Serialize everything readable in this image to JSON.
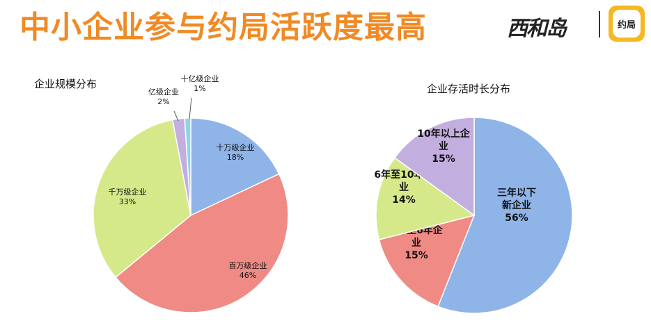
{
  "header": {
    "title": "中小企业参与约局活跃度最高",
    "brand_logo_text": "西和岛",
    "app_icon_text": "约局",
    "title_color": "#f08a24"
  },
  "chart_data": [
    {
      "type": "pie",
      "title": "企业规模分布",
      "slices": [
        {
          "label": "十万级企业",
          "value": 18,
          "value_label": "18%",
          "color": "#8eb4e8"
        },
        {
          "label": "百万级企业",
          "value": 46,
          "value_label": "46%",
          "color": "#ef8a84"
        },
        {
          "label": "千万级企业",
          "value": 33,
          "value_label": "33%",
          "color": "#d5e98a"
        },
        {
          "label": "亿级企业",
          "value": 2,
          "value_label": "2%",
          "color": "#c3aee0"
        },
        {
          "label": "十亿级企业",
          "value": 1,
          "value_label": "1%",
          "color": "#8fd3ec"
        }
      ]
    },
    {
      "type": "pie",
      "title": "企业存活时长分布",
      "slices": [
        {
          "label": "三年以下新企业",
          "value": 56,
          "value_label": "56%",
          "color": "#8eb4e8"
        },
        {
          "label": "3年至6年企业",
          "value": 15,
          "value_label": "15%",
          "color": "#ef8a84"
        },
        {
          "label": "6年至10年企业",
          "value": 14,
          "value_label": "14%",
          "color": "#d5e98a"
        },
        {
          "label": "10年以上企业",
          "value": 15,
          "value_label": "15%",
          "color": "#c3aee0"
        }
      ]
    }
  ]
}
